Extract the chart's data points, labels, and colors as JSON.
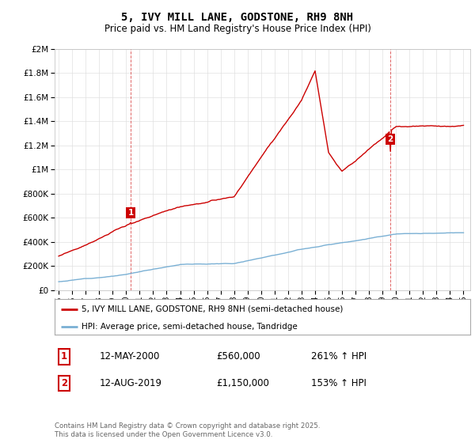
{
  "title": "5, IVY MILL LANE, GODSTONE, RH9 8NH",
  "subtitle": "Price paid vs. HM Land Registry's House Price Index (HPI)",
  "legend_label_red": "5, IVY MILL LANE, GODSTONE, RH9 8NH (semi-detached house)",
  "legend_label_blue": "HPI: Average price, semi-detached house, Tandridge",
  "annotation1_box": "1",
  "annotation1_date": "12-MAY-2000",
  "annotation1_price": "£560,000",
  "annotation1_hpi": "261% ↑ HPI",
  "annotation2_box": "2",
  "annotation2_date": "12-AUG-2019",
  "annotation2_price": "£1,150,000",
  "annotation2_hpi": "153% ↑ HPI",
  "footer": "Contains HM Land Registry data © Crown copyright and database right 2025.\nThis data is licensed under the Open Government Licence v3.0.",
  "red_color": "#cc0000",
  "blue_color": "#7ab0d4",
  "bg_color": "#ffffff",
  "grid_color": "#e0e0e0",
  "title_fontsize": 10,
  "subtitle_fontsize": 8.5,
  "ylim_max": 2000000,
  "xstart_year": 1995,
  "xend_year": 2025
}
